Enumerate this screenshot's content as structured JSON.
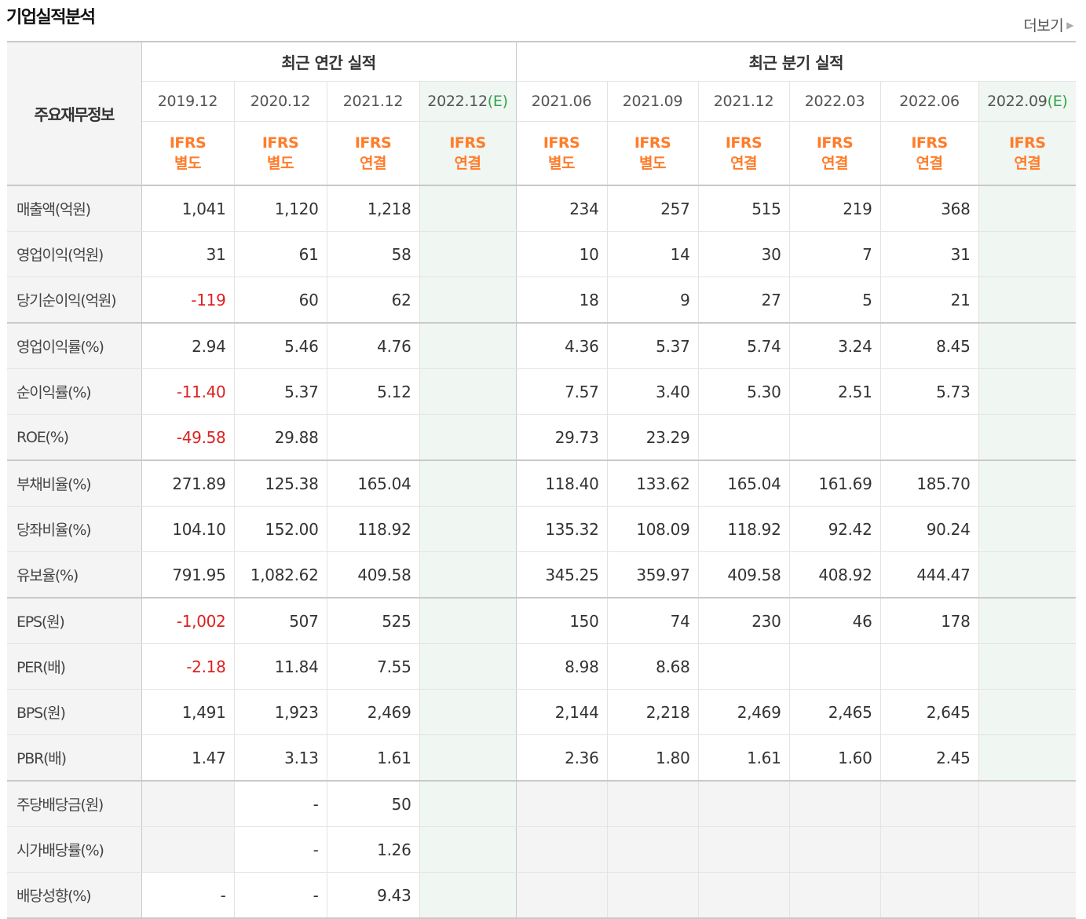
{
  "section": {
    "title": "기업실적분석",
    "more_label": "더보기",
    "more_icon": "triangle-right-icon"
  },
  "colors": {
    "accent_ifrs": "#ff7c2a",
    "negative": "#e01f1f",
    "estimate": "#33a14b",
    "estimate_bg": "#f0f6f1"
  },
  "table": {
    "label_header": "주요재무정보",
    "annual_header": "최근 연간 실적",
    "quarterly_header": "최근 분기 실적",
    "annual_periods": [
      {
        "date": "2019.12",
        "est": "",
        "ifrs": "IFRS",
        "basis": "별도"
      },
      {
        "date": "2020.12",
        "est": "",
        "ifrs": "IFRS",
        "basis": "별도"
      },
      {
        "date": "2021.12",
        "est": "",
        "ifrs": "IFRS",
        "basis": "연결"
      },
      {
        "date": "2022.12",
        "est": "(E)",
        "ifrs": "IFRS",
        "basis": "연결"
      }
    ],
    "quarterly_periods": [
      {
        "date": "2021.06",
        "est": "",
        "ifrs": "IFRS",
        "basis": "별도"
      },
      {
        "date": "2021.09",
        "est": "",
        "ifrs": "IFRS",
        "basis": "별도"
      },
      {
        "date": "2021.12",
        "est": "",
        "ifrs": "IFRS",
        "basis": "연결"
      },
      {
        "date": "2022.03",
        "est": "",
        "ifrs": "IFRS",
        "basis": "연결"
      },
      {
        "date": "2022.06",
        "est": "",
        "ifrs": "IFRS",
        "basis": "연결"
      },
      {
        "date": "2022.09",
        "est": "(E)",
        "ifrs": "IFRS",
        "basis": "연결"
      }
    ],
    "rows": [
      {
        "label": "매출액(억원)",
        "annual": [
          "1,041",
          "1,120",
          "1,218",
          ""
        ],
        "quarterly": [
          "234",
          "257",
          "515",
          "219",
          "368",
          ""
        ]
      },
      {
        "label": "영업이익(억원)",
        "annual": [
          "31",
          "61",
          "58",
          ""
        ],
        "quarterly": [
          "10",
          "14",
          "30",
          "7",
          "31",
          ""
        ]
      },
      {
        "label": "당기순이익(억원)",
        "annual": [
          "-119",
          "60",
          "62",
          ""
        ],
        "quarterly": [
          "18",
          "9",
          "27",
          "5",
          "21",
          ""
        ]
      },
      {
        "label": "영업이익률(%)",
        "annual": [
          "2.94",
          "5.46",
          "4.76",
          ""
        ],
        "quarterly": [
          "4.36",
          "5.37",
          "5.74",
          "3.24",
          "8.45",
          ""
        ]
      },
      {
        "label": "순이익률(%)",
        "annual": [
          "-11.40",
          "5.37",
          "5.12",
          ""
        ],
        "quarterly": [
          "7.57",
          "3.40",
          "5.30",
          "2.51",
          "5.73",
          ""
        ]
      },
      {
        "label": "ROE(%)",
        "annual": [
          "-49.58",
          "29.88",
          "",
          ""
        ],
        "quarterly": [
          "29.73",
          "23.29",
          "",
          "",
          "",
          ""
        ]
      },
      {
        "label": "부채비율(%)",
        "annual": [
          "271.89",
          "125.38",
          "165.04",
          ""
        ],
        "quarterly": [
          "118.40",
          "133.62",
          "165.04",
          "161.69",
          "185.70",
          ""
        ]
      },
      {
        "label": "당좌비율(%)",
        "annual": [
          "104.10",
          "152.00",
          "118.92",
          ""
        ],
        "quarterly": [
          "135.32",
          "108.09",
          "118.92",
          "92.42",
          "90.24",
          ""
        ]
      },
      {
        "label": "유보율(%)",
        "annual": [
          "791.95",
          "1,082.62",
          "409.58",
          ""
        ],
        "quarterly": [
          "345.25",
          "359.97",
          "409.58",
          "408.92",
          "444.47",
          ""
        ]
      },
      {
        "label": "EPS(원)",
        "annual": [
          "-1,002",
          "507",
          "525",
          ""
        ],
        "quarterly": [
          "150",
          "74",
          "230",
          "46",
          "178",
          ""
        ]
      },
      {
        "label": "PER(배)",
        "annual": [
          "-2.18",
          "11.84",
          "7.55",
          ""
        ],
        "quarterly": [
          "8.98",
          "8.68",
          "",
          "",
          "",
          ""
        ]
      },
      {
        "label": "BPS(원)",
        "annual": [
          "1,491",
          "1,923",
          "2,469",
          ""
        ],
        "quarterly": [
          "2,144",
          "2,218",
          "2,469",
          "2,465",
          "2,645",
          ""
        ]
      },
      {
        "label": "PBR(배)",
        "annual": [
          "1.47",
          "3.13",
          "1.61",
          ""
        ],
        "quarterly": [
          "2.36",
          "1.80",
          "1.61",
          "1.60",
          "2.45",
          ""
        ]
      },
      {
        "label": "주당배당금(원)",
        "annual": [
          "",
          "-",
          "50",
          ""
        ],
        "quarterly": [
          "",
          "",
          "",
          "",
          "",
          ""
        ]
      },
      {
        "label": "시가배당률(%)",
        "annual": [
          "",
          "-",
          "1.26",
          ""
        ],
        "quarterly": [
          "",
          "",
          "",
          "",
          "",
          ""
        ]
      },
      {
        "label": "배당성향(%)",
        "annual": [
          "-",
          "-",
          "9.43",
          ""
        ],
        "quarterly": [
          "",
          "",
          "",
          "",
          "",
          ""
        ]
      }
    ]
  }
}
